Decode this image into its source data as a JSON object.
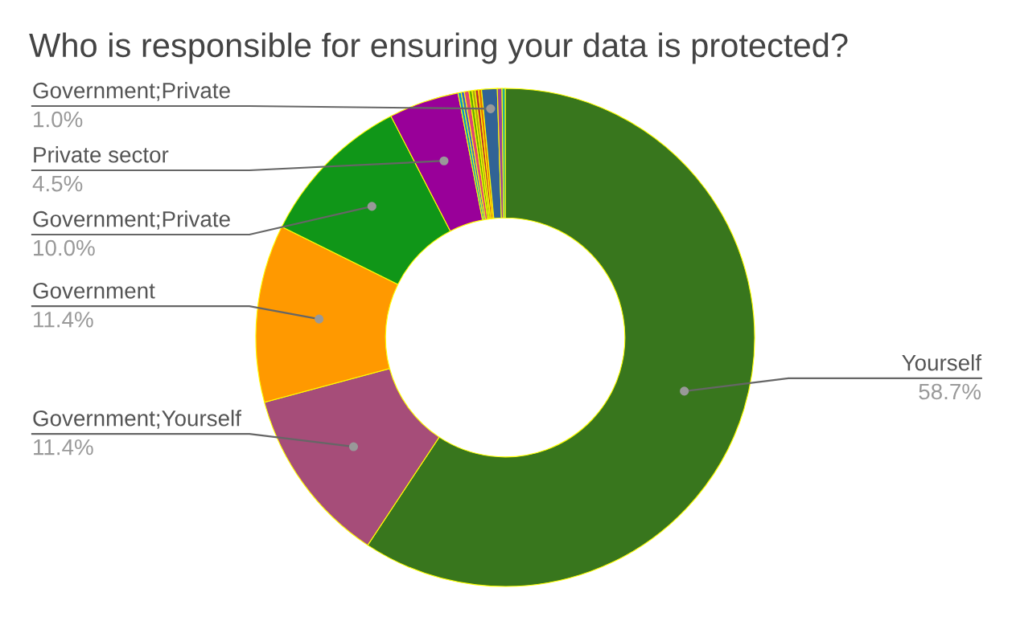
{
  "chart_data": {
    "type": "donut",
    "title": "Who is responsible for ensuring your data is protected?",
    "categories": [
      "Yourself",
      "Government;Yourself",
      "Government",
      "Government;Private",
      "Private sector",
      null,
      null,
      null,
      null,
      null,
      null,
      null,
      "Government;Private",
      null,
      null
    ],
    "values": [
      58.7,
      11.4,
      11.4,
      10.0,
      4.5,
      0.2,
      0.2,
      0.3,
      0.2,
      0.2,
      0.2,
      0.2,
      1.0,
      0.3,
      0.2
    ],
    "value_labels": [
      "58.7%",
      "11.4%",
      "11.4%",
      "10.0%",
      "4.5%",
      null,
      null,
      null,
      null,
      null,
      null,
      null,
      "1.0%",
      null,
      null
    ],
    "colors": [
      "#38761d",
      "#a64d79",
      "#ff9900",
      "#109618",
      "#990099",
      "#0099c6",
      "#3366cc",
      "#dd4477",
      "#66aa00",
      "#aaaa11",
      "#b82e2e",
      "#e67300",
      "#316395",
      "#994499",
      "#22aa99"
    ],
    "legend": false
  }
}
